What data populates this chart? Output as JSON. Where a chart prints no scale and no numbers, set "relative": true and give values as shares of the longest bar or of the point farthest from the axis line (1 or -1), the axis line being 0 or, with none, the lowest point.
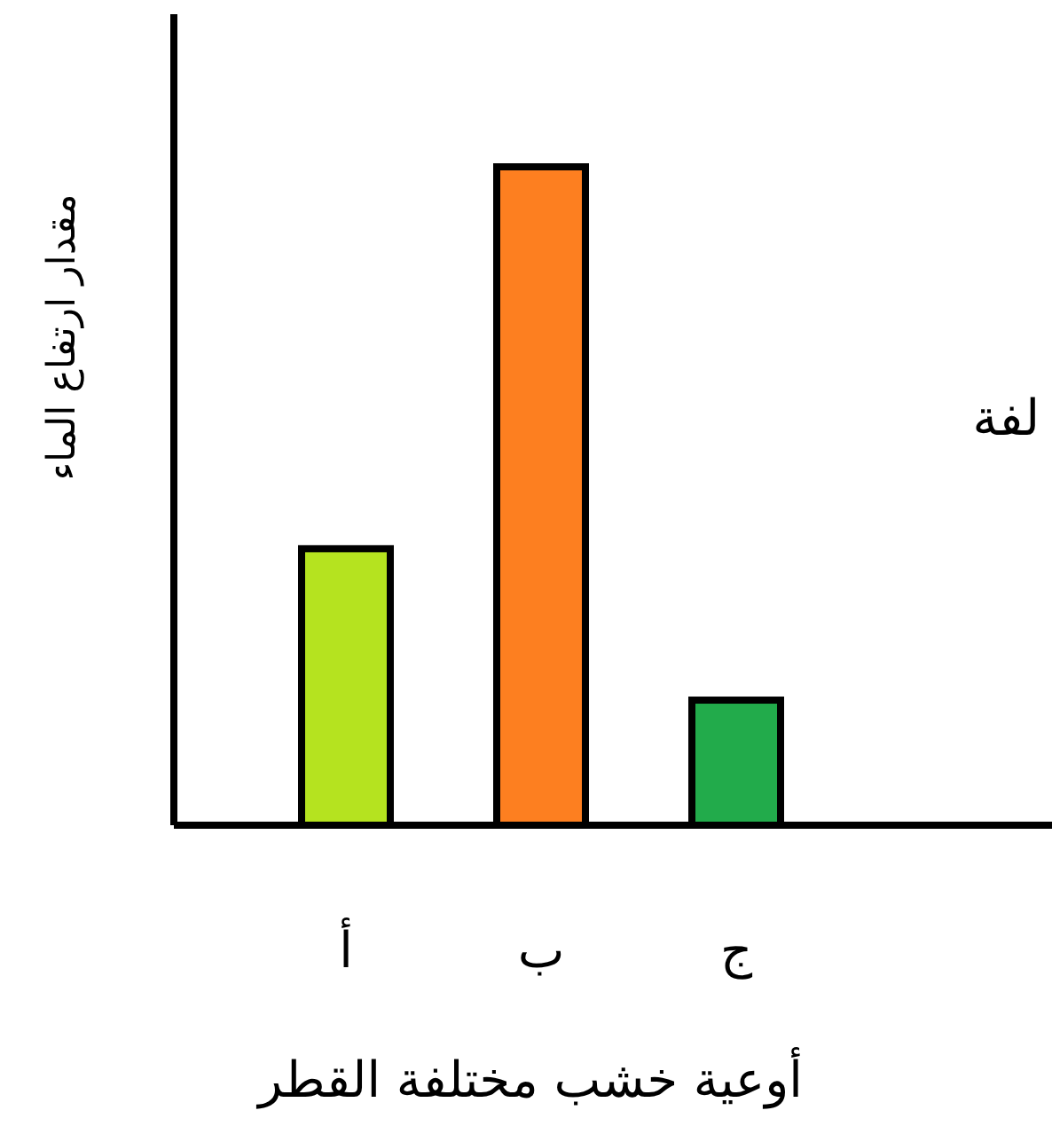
{
  "chart_data": {
    "type": "bar",
    "relative": true,
    "xlabel": "أوعية خشب مختلفة القطر",
    "ylabel": "مقدار ارتفاع الماء",
    "categories": [
      "أ",
      "ب",
      "ج"
    ],
    "colors": [
      "#b5e31f",
      "#fd7f20",
      "#22ab4b"
    ],
    "values": [
      0.42,
      1,
      0.19
    ],
    "annotations": [
      "لفة"
    ]
  }
}
